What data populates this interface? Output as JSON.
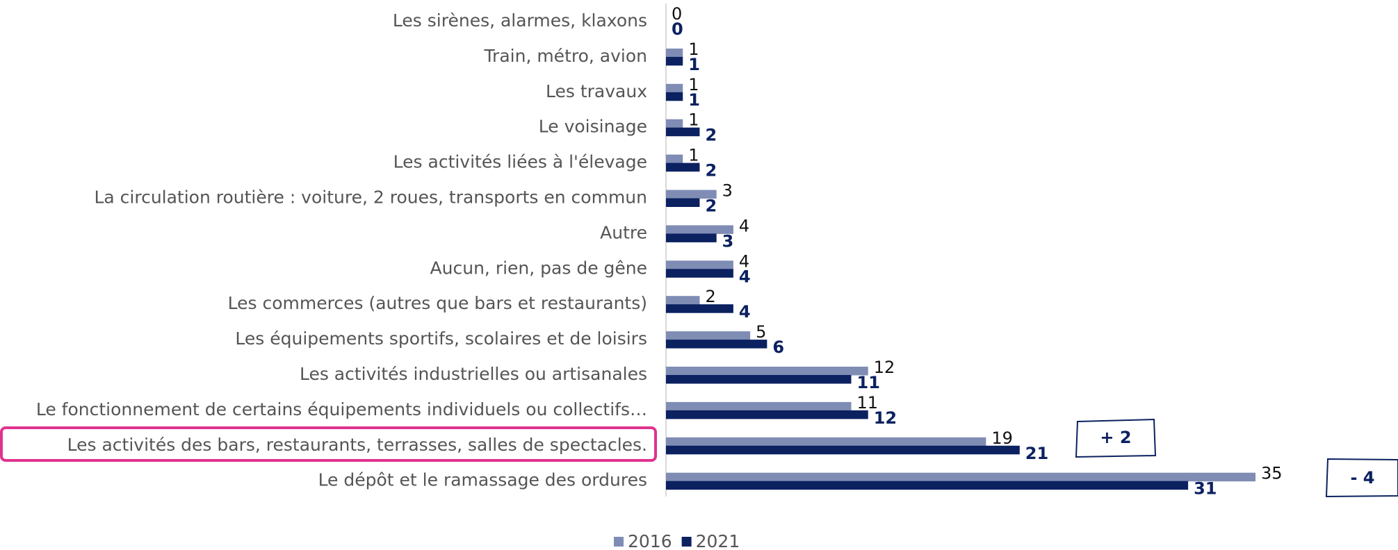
{
  "chart_data": {
    "type": "bar",
    "orientation": "horizontal",
    "categories": [
      "Les sirènes, alarmes, klaxons",
      "Train, métro, avion",
      "Les travaux",
      "Le voisinage",
      "Les activités liées à l'élevage",
      "La circulation routière : voiture, 2 roues, transports en commun",
      "Autre",
      "Aucun, rien, pas de gêne",
      "Les commerces (autres que bars et restaurants)",
      "Les équipements sportifs, scolaires et de loisirs",
      "Les activités industrielles ou artisanales",
      "Le fonctionnement de certains équipements individuels ou collectifs…",
      "Les activités des bars, restaurants, terrasses, salles de spectacles.",
      "Le dépôt et le ramassage des ordures"
    ],
    "series": [
      {
        "name": "2016",
        "color": "#7f8cb4",
        "values": [
          0,
          1,
          1,
          1,
          1,
          3,
          4,
          4,
          2,
          5,
          12,
          11,
          19,
          35
        ]
      },
      {
        "name": "2021",
        "color": "#0b2160",
        "values": [
          0,
          1,
          1,
          2,
          2,
          2,
          3,
          4,
          4,
          6,
          11,
          12,
          21,
          31
        ]
      }
    ],
    "xlim": [
      0,
      35
    ],
    "annotations": [
      "+ 2",
      "- 4"
    ],
    "legend": "bottom"
  }
}
